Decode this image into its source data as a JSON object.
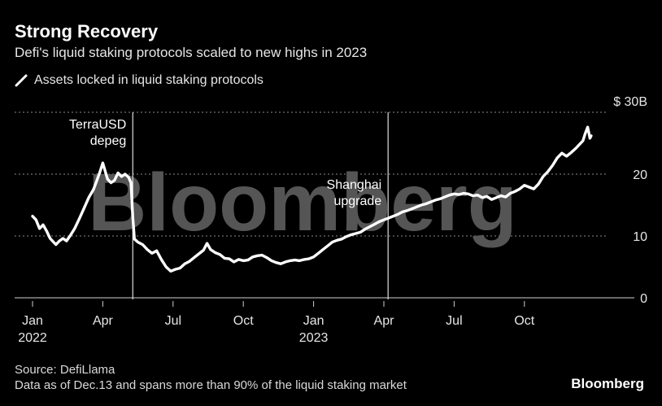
{
  "header": {
    "title": "Strong Recovery",
    "subtitle": "Defi's liquid staking protocols scaled to new highs in 2023",
    "legend_label": "Assets locked in liquid staking protocols"
  },
  "footer": {
    "source": "Source: DefiLlama",
    "note": "Data as of Dec.13 and spans more than 90% of the liquid staking market",
    "logo": "Bloomberg"
  },
  "watermark": "Bloomberg",
  "colors": {
    "background": "#000000",
    "line": "#ffffff",
    "grid": "#777777",
    "watermark": "#555555"
  },
  "chart_data": {
    "type": "line",
    "title": "Strong Recovery",
    "subtitle": "Defi's liquid staking protocols scaled to new highs in 2023",
    "xlabel": "",
    "ylabel": "",
    "ylim": [
      0,
      30
    ],
    "y_ticks": [
      {
        "value": 0,
        "label": "0"
      },
      {
        "value": 10,
        "label": "10"
      },
      {
        "value": 20,
        "label": "20"
      },
      {
        "value": 30,
        "label": "$ 30B"
      }
    ],
    "x_ticks": [
      {
        "t": 0,
        "label": "Jan",
        "sublabel": "2022"
      },
      {
        "t": 3,
        "label": "Apr",
        "sublabel": ""
      },
      {
        "t": 6,
        "label": "Jul",
        "sublabel": ""
      },
      {
        "t": 9,
        "label": "Oct",
        "sublabel": ""
      },
      {
        "t": 12,
        "label": "Jan",
        "sublabel": "2023"
      },
      {
        "t": 15,
        "label": "Apr",
        "sublabel": ""
      },
      {
        "t": 18,
        "label": "Jul",
        "sublabel": ""
      },
      {
        "t": 21,
        "label": "Oct",
        "sublabel": ""
      }
    ],
    "xlim": [
      0,
      24.5
    ],
    "grid": true,
    "series": [
      {
        "name": "Assets locked in liquid staking protocols",
        "points": [
          [
            0.0,
            13.2
          ],
          [
            0.15,
            12.6
          ],
          [
            0.3,
            11.2
          ],
          [
            0.45,
            11.8
          ],
          [
            0.6,
            10.8
          ],
          [
            0.75,
            9.6
          ],
          [
            0.9,
            9.0
          ],
          [
            1.0,
            8.6
          ],
          [
            1.15,
            9.2
          ],
          [
            1.3,
            9.6
          ],
          [
            1.45,
            9.2
          ],
          [
            1.6,
            10.0
          ],
          [
            1.8,
            11.2
          ],
          [
            2.0,
            12.8
          ],
          [
            2.2,
            14.5
          ],
          [
            2.4,
            16.2
          ],
          [
            2.6,
            17.5
          ],
          [
            2.75,
            19.0
          ],
          [
            2.9,
            20.6
          ],
          [
            3.0,
            21.8
          ],
          [
            3.1,
            20.5
          ],
          [
            3.2,
            19.2
          ],
          [
            3.35,
            18.6
          ],
          [
            3.5,
            19.0
          ],
          [
            3.65,
            20.2
          ],
          [
            3.8,
            19.6
          ],
          [
            3.95,
            20.0
          ],
          [
            4.1,
            19.5
          ],
          [
            4.2,
            18.6
          ],
          [
            4.28,
            13.0
          ],
          [
            4.35,
            9.5
          ],
          [
            4.5,
            9.0
          ],
          [
            4.7,
            8.6
          ],
          [
            4.9,
            7.8
          ],
          [
            5.1,
            7.2
          ],
          [
            5.3,
            7.6
          ],
          [
            5.5,
            6.2
          ],
          [
            5.7,
            5.0
          ],
          [
            5.9,
            4.3
          ],
          [
            6.1,
            4.6
          ],
          [
            6.3,
            4.8
          ],
          [
            6.5,
            5.5
          ],
          [
            6.7,
            5.9
          ],
          [
            6.9,
            6.5
          ],
          [
            7.1,
            7.1
          ],
          [
            7.3,
            7.7
          ],
          [
            7.45,
            8.8
          ],
          [
            7.6,
            7.8
          ],
          [
            7.8,
            7.3
          ],
          [
            8.0,
            7.0
          ],
          [
            8.2,
            6.4
          ],
          [
            8.4,
            6.3
          ],
          [
            8.6,
            5.8
          ],
          [
            8.8,
            6.2
          ],
          [
            9.0,
            6.0
          ],
          [
            9.2,
            6.1
          ],
          [
            9.4,
            6.6
          ],
          [
            9.6,
            6.8
          ],
          [
            9.8,
            6.9
          ],
          [
            10.0,
            6.5
          ],
          [
            10.2,
            6.0
          ],
          [
            10.4,
            5.7
          ],
          [
            10.6,
            5.5
          ],
          [
            10.8,
            5.8
          ],
          [
            11.0,
            6.0
          ],
          [
            11.2,
            6.1
          ],
          [
            11.4,
            6.0
          ],
          [
            11.6,
            6.2
          ],
          [
            11.8,
            6.3
          ],
          [
            12.0,
            6.6
          ],
          [
            12.2,
            7.2
          ],
          [
            12.4,
            7.8
          ],
          [
            12.6,
            8.4
          ],
          [
            12.8,
            9.0
          ],
          [
            13.0,
            9.3
          ],
          [
            13.2,
            9.5
          ],
          [
            13.4,
            9.9
          ],
          [
            13.6,
            10.2
          ],
          [
            13.8,
            10.4
          ],
          [
            14.0,
            10.6
          ],
          [
            14.2,
            11.1
          ],
          [
            14.4,
            11.5
          ],
          [
            14.6,
            11.9
          ],
          [
            14.8,
            12.3
          ],
          [
            15.0,
            12.6
          ],
          [
            15.2,
            12.9
          ],
          [
            15.4,
            13.2
          ],
          [
            15.6,
            13.5
          ],
          [
            15.8,
            13.9
          ],
          [
            16.0,
            14.1
          ],
          [
            16.2,
            14.4
          ],
          [
            16.4,
            14.7
          ],
          [
            16.6,
            15.0
          ],
          [
            16.8,
            15.2
          ],
          [
            17.0,
            15.5
          ],
          [
            17.2,
            15.8
          ],
          [
            17.4,
            16.0
          ],
          [
            17.6,
            16.3
          ],
          [
            17.8,
            16.6
          ],
          [
            18.0,
            16.8
          ],
          [
            18.2,
            16.7
          ],
          [
            18.4,
            16.9
          ],
          [
            18.6,
            16.8
          ],
          [
            18.8,
            16.5
          ],
          [
            19.0,
            16.6
          ],
          [
            19.2,
            16.2
          ],
          [
            19.4,
            16.4
          ],
          [
            19.6,
            15.9
          ],
          [
            19.8,
            16.2
          ],
          [
            20.0,
            16.5
          ],
          [
            20.2,
            16.3
          ],
          [
            20.4,
            16.9
          ],
          [
            20.6,
            17.2
          ],
          [
            20.8,
            17.6
          ],
          [
            21.0,
            18.2
          ],
          [
            21.2,
            17.9
          ],
          [
            21.4,
            17.6
          ],
          [
            21.6,
            18.4
          ],
          [
            21.8,
            19.6
          ],
          [
            22.0,
            20.4
          ],
          [
            22.2,
            21.4
          ],
          [
            22.4,
            22.6
          ],
          [
            22.6,
            23.4
          ],
          [
            22.8,
            22.9
          ],
          [
            23.0,
            23.5
          ],
          [
            23.2,
            24.2
          ],
          [
            23.35,
            24.8
          ],
          [
            23.5,
            25.4
          ],
          [
            23.6,
            26.6
          ],
          [
            23.7,
            27.6
          ],
          [
            23.8,
            25.8
          ],
          [
            23.85,
            26.2
          ]
        ]
      }
    ],
    "annotations": [
      {
        "t": 4.28,
        "lines": [
          "TerraUSD",
          "depeg"
        ]
      },
      {
        "t": 15.18,
        "lines": [
          "Shanghai",
          "upgrade"
        ]
      }
    ]
  }
}
